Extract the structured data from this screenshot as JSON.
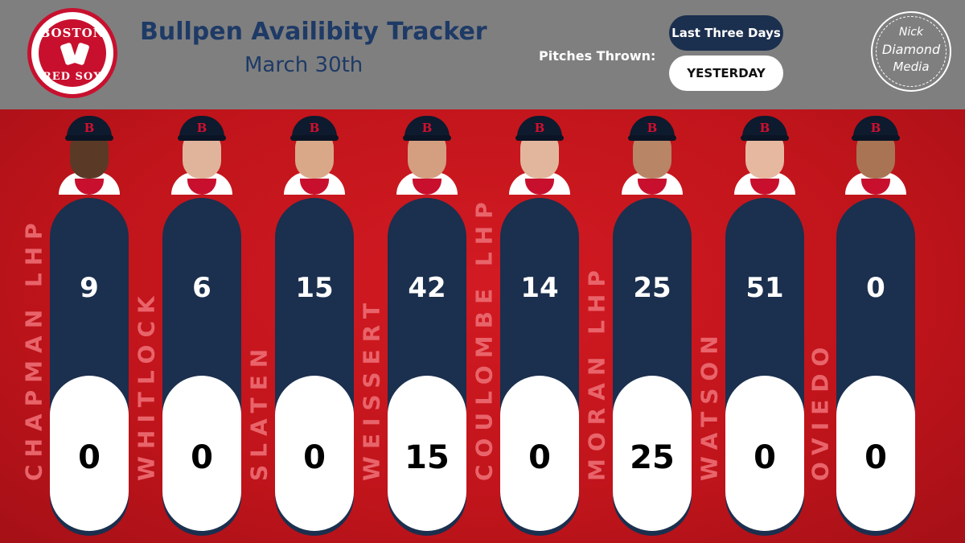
{
  "header": {
    "logo_top": "BOSTON",
    "logo_bottom": "RED SOX",
    "title": "Bullpen Availibity Tracker",
    "subtitle": "March 30th",
    "pitches_label": "Pitches Thrown:",
    "legend_three_days": "Last Three Days",
    "legend_yesterday": "YESTERDAY",
    "brand_line1": "Nick",
    "brand_line2": "Diamond",
    "brand_line3": "Media"
  },
  "colors": {
    "navy": "#1b2f4e",
    "red": "#c8161d",
    "header_gray": "#7f7f7f",
    "title_blue": "#1e3a66"
  },
  "cap_letter": "B",
  "players": [
    {
      "name": "CHAPMAN LHP",
      "last_three_days": "9",
      "yesterday": "0",
      "skin": "#5a3a26"
    },
    {
      "name": "WHITLOCK",
      "last_three_days": "6",
      "yesterday": "0",
      "skin": "#e0b49a"
    },
    {
      "name": "SLATEN",
      "last_three_days": "15",
      "yesterday": "0",
      "skin": "#d9a888"
    },
    {
      "name": "WEISSERT",
      "last_three_days": "42",
      "yesterday": "15",
      "skin": "#d49e80"
    },
    {
      "name": "COULOMBE LHP",
      "last_three_days": "14",
      "yesterday": "0",
      "skin": "#e2b69c"
    },
    {
      "name": "MORAN LHP",
      "last_three_days": "25",
      "yesterday": "25",
      "skin": "#b88566"
    },
    {
      "name": "WATSON",
      "last_three_days": "51",
      "yesterday": "0",
      "skin": "#e6b8a0"
    },
    {
      "name": "OVIEDO",
      "last_three_days": "0",
      "yesterday": "0",
      "skin": "#a87454"
    }
  ]
}
